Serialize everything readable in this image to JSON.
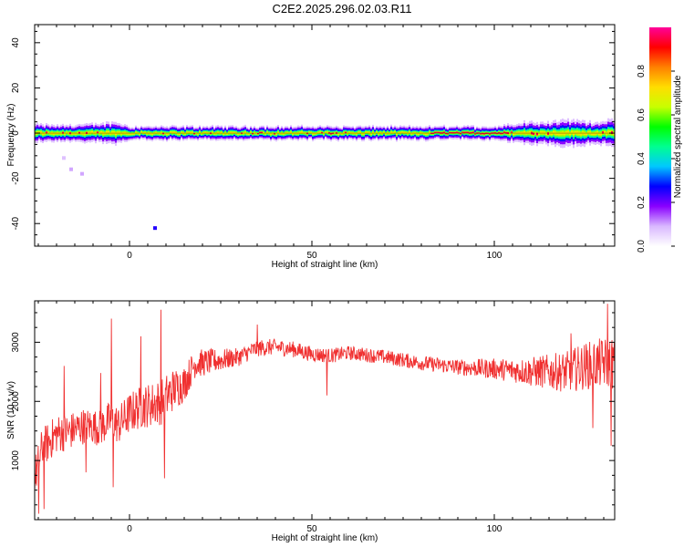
{
  "title": "C2E2.2025.296.02.03.R11",
  "chart_data": [
    {
      "type": "heatmap",
      "xlabel": "Height of straight line (km)",
      "ylabel": "Frequency (Hz)",
      "xlim": [
        -26,
        133
      ],
      "ylim": [
        -50,
        48
      ],
      "xticks": [
        0,
        50,
        100
      ],
      "yticks": [
        -40,
        -20,
        0,
        20,
        40
      ],
      "colorbar": {
        "label": "Normalized spectral amplitude",
        "range": [
          0,
          1
        ],
        "ticks": [
          "0.0",
          "0.2",
          "0.4",
          "0.6",
          "0.8"
        ],
        "colormap": [
          "#ffffff",
          "#d9b8ff",
          "#8a00ff",
          "#0000ff",
          "#00c8ff",
          "#00ff90",
          "#00ff00",
          "#c8ff00",
          "#ffdd00",
          "#ff8000",
          "#ff0000",
          "#ff0099"
        ]
      },
      "band": {
        "center_hz": 0,
        "halfwidth_hz": [
          [
            -26,
            4
          ],
          [
            -20,
            3.5
          ],
          [
            -10,
            4
          ],
          [
            -4,
            5
          ],
          [
            0,
            3
          ],
          [
            20,
            3
          ],
          [
            50,
            3
          ],
          [
            80,
            3
          ],
          [
            100,
            3
          ],
          [
            108,
            5
          ],
          [
            115,
            5
          ],
          [
            120,
            6
          ],
          [
            126,
            5
          ],
          [
            133,
            6
          ]
        ]
      },
      "outliers": [
        {
          "x": 7,
          "y": -42,
          "amp": 0.25
        },
        {
          "x": -16,
          "y": -16,
          "amp": 0.1
        },
        {
          "x": -13,
          "y": -18,
          "amp": 0.1
        },
        {
          "x": -18,
          "y": -11,
          "amp": 0.08
        }
      ]
    },
    {
      "type": "line",
      "xlabel": "Height of straight line (km)",
      "ylabel": "SNR (10 * v/v)",
      "xlim": [
        -26,
        133
      ],
      "ylim": [
        0,
        3700
      ],
      "xticks": [
        0,
        50,
        100
      ],
      "yticks": [
        1000,
        2000,
        3000
      ],
      "color": "#f03030",
      "trend": [
        [
          -26,
          700
        ],
        [
          -24,
          1200
        ],
        [
          -20,
          1450
        ],
        [
          -16,
          1500
        ],
        [
          -12,
          1600
        ],
        [
          -8,
          1550
        ],
        [
          -5,
          1700
        ],
        [
          -3,
          1600
        ],
        [
          0,
          1800
        ],
        [
          3,
          1900
        ],
        [
          6,
          1950
        ],
        [
          9,
          2000
        ],
        [
          12,
          2200
        ],
        [
          15,
          2300
        ],
        [
          18,
          2650
        ],
        [
          20,
          2650
        ],
        [
          25,
          2700
        ],
        [
          30,
          2750
        ],
        [
          35,
          2900
        ],
        [
          40,
          2920
        ],
        [
          45,
          2880
        ],
        [
          50,
          2800
        ],
        [
          55,
          2770
        ],
        [
          60,
          2820
        ],
        [
          70,
          2750
        ],
        [
          80,
          2650
        ],
        [
          90,
          2580
        ],
        [
          100,
          2550
        ],
        [
          110,
          2500
        ],
        [
          120,
          2500
        ],
        [
          125,
          2600
        ],
        [
          130,
          2650
        ],
        [
          133,
          2650
        ]
      ],
      "spread": [
        [
          -26,
          350
        ],
        [
          -10,
          300
        ],
        [
          0,
          350
        ],
        [
          10,
          400
        ],
        [
          18,
          250
        ],
        [
          30,
          150
        ],
        [
          60,
          120
        ],
        [
          90,
          130
        ],
        [
          105,
          200
        ],
        [
          115,
          300
        ],
        [
          125,
          400
        ],
        [
          133,
          450
        ]
      ],
      "spikes": [
        {
          "x": -25,
          "y": 100
        },
        {
          "x": -23.5,
          "y": 180
        },
        {
          "x": -18,
          "y": 2600
        },
        {
          "x": -12,
          "y": 800
        },
        {
          "x": -8,
          "y": 2480
        },
        {
          "x": -5,
          "y": 3400
        },
        {
          "x": -4.5,
          "y": 550
        },
        {
          "x": 3,
          "y": 3100
        },
        {
          "x": 8.5,
          "y": 3550
        },
        {
          "x": 9.5,
          "y": 700
        },
        {
          "x": 35,
          "y": 3300
        },
        {
          "x": 54,
          "y": 2100
        },
        {
          "x": 121,
          "y": 3150
        },
        {
          "x": 127,
          "y": 1550
        },
        {
          "x": 131,
          "y": 3650
        },
        {
          "x": 132,
          "y": 1250
        }
      ]
    }
  ]
}
